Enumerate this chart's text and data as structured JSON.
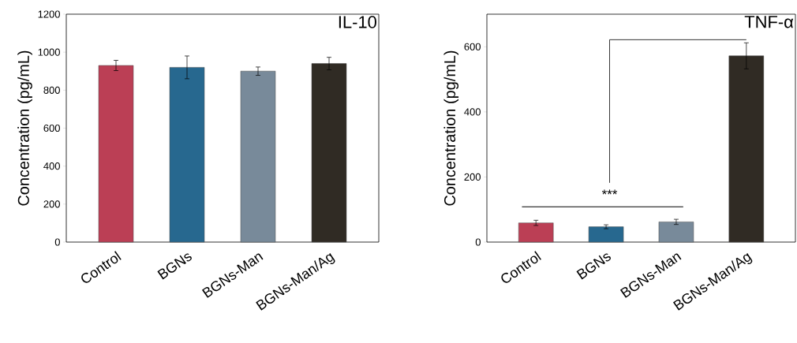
{
  "chart_data": [
    {
      "type": "bar",
      "title": "IL-10",
      "ylabel": "Concentration (pg/mL)",
      "categories": [
        "Control",
        "BGNs",
        "BGNs-Man",
        "BGNs-Man/Ag"
      ],
      "values": [
        930,
        920,
        900,
        940
      ],
      "errors": [
        27,
        60,
        22,
        33
      ],
      "colors": [
        "#bb3f55",
        "#27688f",
        "#788a9a",
        "#302b24"
      ],
      "ylim": [
        0,
        1200
      ],
      "yticks": [
        0,
        200,
        400,
        600,
        800,
        1000,
        1200
      ]
    },
    {
      "type": "bar",
      "title": "TNF-α",
      "ylabel": "Concentration (pg/mL)",
      "categories": [
        "Control",
        "BGNs",
        "BGNs-Man",
        "BGNs-Man/Ag"
      ],
      "values": [
        59,
        47,
        62,
        572
      ],
      "errors": [
        8,
        6,
        8,
        40
      ],
      "colors": [
        "#bb3f55",
        "#27688f",
        "#788a9a",
        "#302b24"
      ],
      "ylim": [
        0,
        700
      ],
      "yticks": [
        0,
        200,
        400,
        600
      ],
      "annotations": [
        "***"
      ]
    }
  ]
}
